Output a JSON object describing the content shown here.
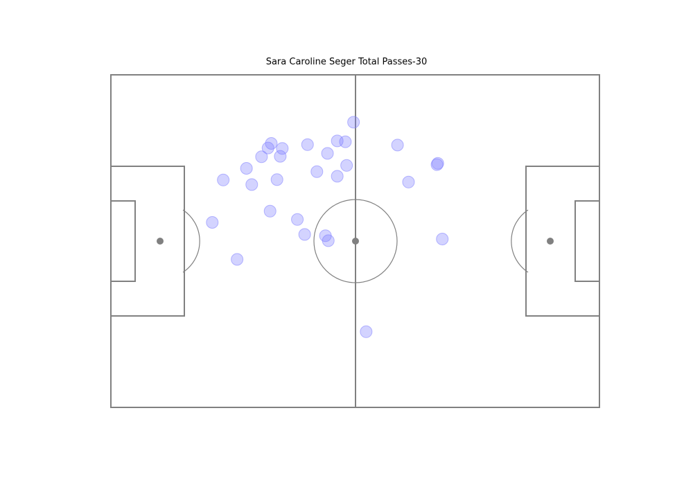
{
  "chart_data": {
    "type": "scatter",
    "title": "Sara Caroline Seger Total Passes-30",
    "xlabel": "",
    "ylabel": "",
    "xlim": [
      0,
      120
    ],
    "ylim": [
      0,
      80
    ],
    "grid": false,
    "marker_color": "#8080ff",
    "series": [
      {
        "points": [
          [
            59.6,
            68.6
          ],
          [
            53.2,
            61.1
          ],
          [
            38.6,
            62.4
          ],
          [
            39.4,
            63.5
          ],
          [
            37.0,
            60.3
          ],
          [
            55.6,
            55.6
          ],
          [
            57.6,
            63.9
          ],
          [
            48.3,
            63.2
          ],
          [
            50.6,
            56.7
          ],
          [
            41.6,
            60.4
          ],
          [
            34.6,
            53.6
          ],
          [
            40.8,
            54.8
          ],
          [
            27.6,
            54.7
          ],
          [
            39.1,
            47.2
          ],
          [
            33.3,
            57.5
          ],
          [
            80.1,
            58.4
          ],
          [
            80.3,
            58.7
          ],
          [
            70.4,
            63.1
          ],
          [
            55.6,
            64.1
          ],
          [
            73.1,
            54.2
          ],
          [
            24.9,
            44.5
          ],
          [
            42.1,
            62.3
          ],
          [
            52.7,
            41.3
          ],
          [
            53.4,
            40.1
          ],
          [
            81.4,
            40.5
          ],
          [
            45.8,
            45.2
          ],
          [
            47.6,
            41.6
          ],
          [
            57.9,
            58.2
          ],
          [
            31.0,
            35.6
          ],
          [
            62.7,
            18.2
          ]
        ]
      }
    ]
  }
}
